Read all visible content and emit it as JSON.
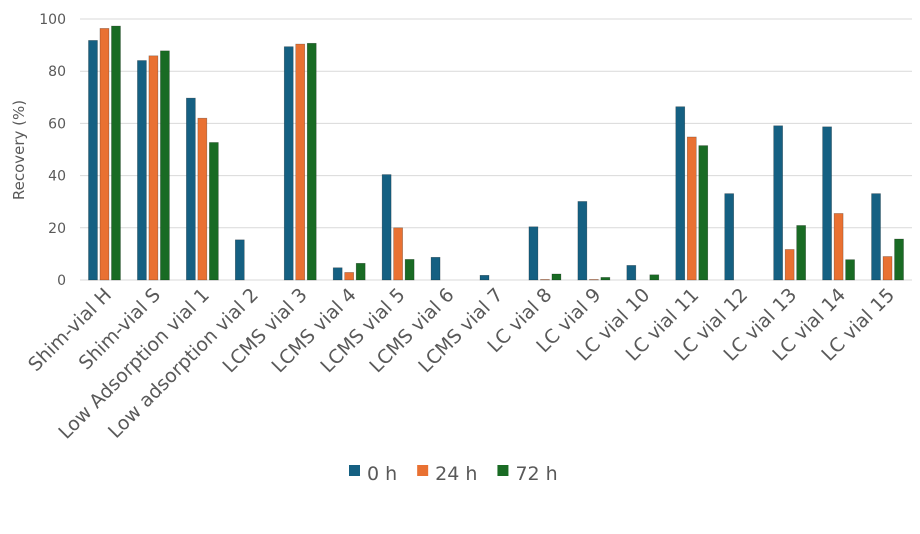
{
  "chart_data": {
    "type": "bar",
    "title": "",
    "xlabel": "",
    "ylabel": "Recovery (%)",
    "ylim": [
      0,
      100
    ],
    "yticks": [
      0,
      20,
      40,
      60,
      80,
      100
    ],
    "grid": true,
    "legend_position": "bottom",
    "categories": [
      "Shim-vial H",
      "Shim-vial S",
      "Low Adsorption vial 1",
      "Low adsorption vial 2",
      "LCMS vial 3",
      "LCMS vial 4",
      "LCMS vial 5",
      "LCMS vial 6",
      "LCMS vial 7",
      "LC vial 8",
      "LC vial 9",
      "LC vial 10",
      "LC vial 11",
      "LC vial 12",
      "LC vial 13",
      "LC vial 14",
      "LC vial 15"
    ],
    "series": [
      {
        "name": "0 h",
        "color": "#156082",
        "values": [
          91.8,
          84.1,
          69.7,
          15.4,
          89.4,
          4.7,
          40.4,
          8.7,
          1.8,
          20.4,
          30.1,
          5.6,
          66.4,
          33.1,
          59.1,
          58.7,
          33.1
        ]
      },
      {
        "name": "24 h",
        "color": "#e97132",
        "values": [
          96.4,
          85.9,
          62.0,
          0,
          90.4,
          2.9,
          20.0,
          0,
          0,
          0.2,
          0.2,
          0,
          54.8,
          0,
          11.7,
          25.5,
          9.0
        ]
      },
      {
        "name": "72 h",
        "color": "#196b24",
        "values": [
          97.3,
          87.8,
          52.7,
          0,
          90.7,
          6.4,
          7.9,
          0,
          0,
          2.3,
          1.0,
          2.0,
          51.5,
          0,
          20.9,
          7.8,
          15.7
        ]
      }
    ]
  }
}
